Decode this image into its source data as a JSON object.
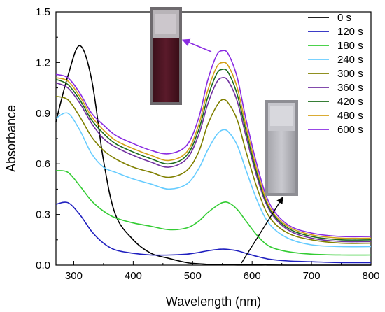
{
  "chart_data": {
    "type": "line",
    "xlabel": "Wavelength (nm)",
    "ylabel": "Absorbance",
    "xlim": [
      270,
      800
    ],
    "ylim": [
      0,
      1.5
    ],
    "xticks": [
      300,
      400,
      500,
      600,
      700,
      800
    ],
    "xtick_labels": [
      "300",
      "400",
      "500",
      "600",
      "700",
      "800"
    ],
    "yticks": [
      0.0,
      0.3,
      0.6,
      0.9,
      1.2,
      1.5
    ],
    "ytick_labels": [
      "0.0",
      "0.3",
      "0.6",
      "0.9",
      "1.2",
      "1.5"
    ],
    "grid": false,
    "legend_position": "top-right",
    "x": [
      270,
      290,
      310,
      330,
      350,
      370,
      400,
      430,
      460,
      490,
      510,
      525,
      540,
      550,
      560,
      575,
      590,
      610,
      630,
      660,
      700,
      750,
      800
    ],
    "series": [
      {
        "name": "0 s",
        "color": "#000000",
        "values": [
          0.85,
          1.12,
          1.3,
          1.1,
          0.62,
          0.3,
          0.15,
          0.07,
          0.04,
          0.015,
          0.008,
          0.005,
          0.003,
          0.002,
          0.002,
          0.001,
          0.001,
          0.001,
          0.001,
          0.0,
          0.0,
          0.0,
          0.0
        ]
      },
      {
        "name": "120 s",
        "color": "#1f1fbf",
        "values": [
          0.36,
          0.37,
          0.3,
          0.2,
          0.13,
          0.09,
          0.07,
          0.06,
          0.06,
          0.065,
          0.075,
          0.085,
          0.092,
          0.095,
          0.093,
          0.085,
          0.07,
          0.05,
          0.035,
          0.025,
          0.02,
          0.015,
          0.015
        ]
      },
      {
        "name": "180 s",
        "color": "#33cc33",
        "values": [
          0.56,
          0.55,
          0.47,
          0.38,
          0.32,
          0.28,
          0.25,
          0.23,
          0.21,
          0.22,
          0.26,
          0.31,
          0.35,
          0.37,
          0.37,
          0.33,
          0.26,
          0.17,
          0.11,
          0.08,
          0.065,
          0.06,
          0.06
        ]
      },
      {
        "name": "240 s",
        "color": "#66ccff",
        "values": [
          0.87,
          0.9,
          0.8,
          0.66,
          0.58,
          0.55,
          0.51,
          0.48,
          0.45,
          0.48,
          0.57,
          0.68,
          0.77,
          0.8,
          0.79,
          0.71,
          0.56,
          0.37,
          0.24,
          0.16,
          0.12,
          0.11,
          0.11
        ]
      },
      {
        "name": "300 s",
        "color": "#808000",
        "values": [
          1.0,
          0.98,
          0.88,
          0.76,
          0.68,
          0.63,
          0.58,
          0.55,
          0.52,
          0.56,
          0.67,
          0.83,
          0.94,
          0.98,
          0.96,
          0.86,
          0.67,
          0.44,
          0.28,
          0.19,
          0.15,
          0.13,
          0.13
        ]
      },
      {
        "name": "360 s",
        "color": "#7030a0",
        "values": [
          1.08,
          1.05,
          0.96,
          0.84,
          0.75,
          0.7,
          0.65,
          0.61,
          0.58,
          0.63,
          0.77,
          0.95,
          1.08,
          1.11,
          1.09,
          0.97,
          0.76,
          0.5,
          0.32,
          0.21,
          0.16,
          0.14,
          0.14
        ]
      },
      {
        "name": "420 s",
        "color": "#1a6b1a",
        "values": [
          1.1,
          1.07,
          0.98,
          0.86,
          0.78,
          0.72,
          0.67,
          0.63,
          0.6,
          0.65,
          0.8,
          0.99,
          1.13,
          1.16,
          1.14,
          1.01,
          0.79,
          0.52,
          0.33,
          0.22,
          0.17,
          0.15,
          0.15
        ]
      },
      {
        "name": "480 s",
        "color": "#d4a017",
        "values": [
          1.11,
          1.09,
          1.0,
          0.88,
          0.8,
          0.74,
          0.69,
          0.65,
          0.62,
          0.67,
          0.83,
          1.03,
          1.17,
          1.2,
          1.18,
          1.05,
          0.82,
          0.54,
          0.34,
          0.23,
          0.18,
          0.16,
          0.16
        ]
      },
      {
        "name": "600 s",
        "color": "#8a2be2",
        "values": [
          1.13,
          1.11,
          1.02,
          0.9,
          0.83,
          0.77,
          0.72,
          0.68,
          0.66,
          0.71,
          0.87,
          1.09,
          1.24,
          1.27,
          1.25,
          1.11,
          0.86,
          0.57,
          0.36,
          0.24,
          0.19,
          0.17,
          0.17
        ]
      }
    ],
    "annotations": [
      {
        "type": "arrow",
        "from_data": [
          550,
          1.26
        ],
        "to": "inset-red-cuvette",
        "color": "#8a2be2"
      },
      {
        "type": "arrow",
        "from_data": [
          545,
          0.01
        ],
        "to": "inset-clear-cuvette",
        "color": "#000000"
      }
    ]
  }
}
